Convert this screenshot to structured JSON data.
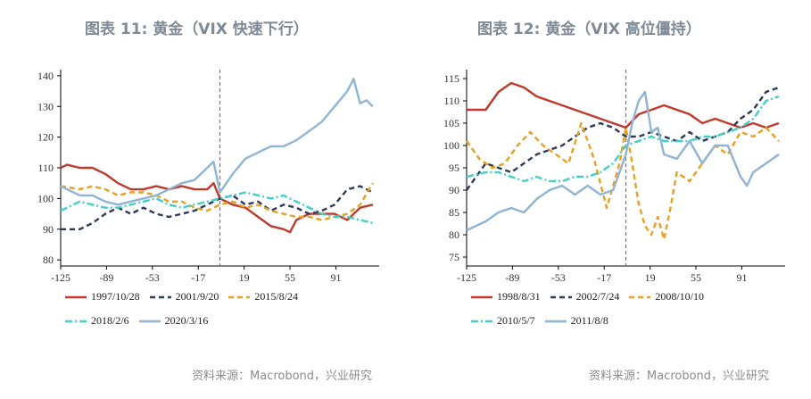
{
  "chart_data": [
    {
      "type": "line",
      "title": "图表 11: 黄金（VIX 快速下行）",
      "xlabel": "",
      "ylabel": "",
      "x_ticks": [
        -125,
        -89,
        -53,
        -17,
        19,
        55,
        91
      ],
      "y_ticks": [
        80,
        90,
        100,
        110,
        120,
        130,
        140
      ],
      "xlim": [
        -125,
        125
      ],
      "ylim": [
        78,
        142
      ],
      "event_line_x": 0,
      "legend_rows": [
        [
          0,
          1,
          2
        ],
        [
          3,
          4
        ]
      ],
      "series": [
        {
          "name": "1997/10/28",
          "color": "#c0392b",
          "dash": "solid",
          "x": [
            -125,
            -120,
            -110,
            -100,
            -90,
            -80,
            -70,
            -60,
            -50,
            -40,
            -30,
            -20,
            -10,
            -5,
            0,
            10,
            20,
            30,
            40,
            50,
            55,
            60,
            70,
            80,
            90,
            100,
            110,
            120
          ],
          "y": [
            110,
            111,
            110,
            110,
            108,
            105,
            103,
            103,
            104,
            103,
            104,
            103,
            103,
            105,
            100,
            98,
            97,
            94,
            91,
            90,
            89,
            93,
            95,
            95,
            95,
            93,
            97,
            98
          ]
        },
        {
          "name": "2001/9/20",
          "color": "#2e3a59",
          "dash": "6,4",
          "x": [
            -125,
            -110,
            -100,
            -90,
            -80,
            -70,
            -60,
            -50,
            -40,
            -30,
            -20,
            -10,
            0,
            10,
            20,
            30,
            40,
            50,
            60,
            70,
            80,
            90,
            100,
            110,
            120
          ],
          "y": [
            90,
            90,
            92,
            95,
            97,
            95,
            97,
            95,
            94,
            95,
            96,
            98,
            100,
            101,
            98,
            99,
            96,
            98,
            97,
            95,
            96,
            98,
            103,
            104,
            102
          ]
        },
        {
          "name": "2015/8/24",
          "color": "#e8a020",
          "dash": "6,4",
          "x": [
            -125,
            -110,
            -100,
            -90,
            -80,
            -70,
            -60,
            -50,
            -40,
            -30,
            -20,
            -10,
            0,
            10,
            20,
            30,
            40,
            50,
            60,
            70,
            80,
            90,
            100,
            110,
            120
          ],
          "y": [
            104,
            103,
            104,
            103,
            101,
            102,
            102,
            101,
            99,
            99,
            97,
            96,
            98,
            99,
            97,
            98,
            96,
            95,
            94,
            94,
            93,
            94,
            95,
            98,
            105
          ]
        },
        {
          "name": "2018/2/6",
          "color": "#40d0c8",
          "dash": "8,3,2,3",
          "x": [
            -125,
            -110,
            -100,
            -90,
            -80,
            -70,
            -60,
            -50,
            -40,
            -30,
            -20,
            -10,
            0,
            10,
            20,
            30,
            40,
            50,
            60,
            70,
            80,
            90,
            100,
            110,
            120
          ],
          "y": [
            96,
            99,
            98,
            97,
            97,
            98,
            99,
            100,
            98,
            97,
            98,
            99,
            100,
            101,
            102,
            101,
            100,
            101,
            99,
            97,
            95,
            94,
            94,
            93,
            92
          ]
        },
        {
          "name": "2020/3/16",
          "color": "#8fb4d4",
          "dash": "solid",
          "x": [
            -125,
            -110,
            -100,
            -90,
            -80,
            -70,
            -60,
            -50,
            -40,
            -30,
            -20,
            -10,
            -5,
            0,
            10,
            20,
            30,
            40,
            50,
            60,
            70,
            80,
            90,
            100,
            105,
            110,
            115,
            120
          ],
          "y": [
            104,
            101,
            101,
            99,
            98,
            99,
            100,
            101,
            103,
            105,
            106,
            110,
            112,
            102,
            108,
            113,
            115,
            117,
            117,
            119,
            122,
            125,
            130,
            135,
            139,
            131,
            132,
            130
          ]
        }
      ]
    },
    {
      "type": "line",
      "title": "图表 12: 黄金（VIX 高位僵持）",
      "xlabel": "",
      "ylabel": "",
      "x_ticks": [
        -125,
        -89,
        -53,
        -17,
        19,
        55,
        91
      ],
      "y_ticks": [
        75,
        80,
        85,
        90,
        95,
        100,
        105,
        110,
        115
      ],
      "xlim": [
        -125,
        125
      ],
      "ylim": [
        73,
        117
      ],
      "event_line_x": 0,
      "legend_rows": [
        [
          0,
          1,
          2
        ],
        [
          3,
          4
        ]
      ],
      "series": [
        {
          "name": "1998/8/31",
          "color": "#c0392b",
          "dash": "solid",
          "x": [
            -125,
            -110,
            -100,
            -90,
            -80,
            -70,
            -60,
            -50,
            -40,
            -30,
            -20,
            -10,
            0,
            10,
            20,
            30,
            40,
            50,
            60,
            70,
            80,
            90,
            100,
            110,
            120
          ],
          "y": [
            108,
            108,
            112,
            114,
            113,
            111,
            110,
            109,
            108,
            107,
            106,
            105,
            104,
            107,
            108,
            109,
            108,
            107,
            105,
            106,
            105,
            104,
            105,
            104,
            105
          ]
        },
        {
          "name": "2002/7/24",
          "color": "#2e3a59",
          "dash": "6,4",
          "x": [
            -125,
            -110,
            -100,
            -90,
            -80,
            -70,
            -60,
            -50,
            -40,
            -30,
            -20,
            -10,
            0,
            10,
            20,
            30,
            40,
            50,
            60,
            70,
            80,
            90,
            100,
            110,
            120
          ],
          "y": [
            90,
            96,
            95,
            94,
            96,
            98,
            99,
            100,
            102,
            104,
            105,
            104,
            102,
            102,
            103,
            102,
            101,
            103,
            101,
            102,
            103,
            106,
            108,
            112,
            113
          ]
        },
        {
          "name": "2008/10/10",
          "color": "#e8a020",
          "dash": "6,4",
          "x": [
            -125,
            -115,
            -105,
            -95,
            -85,
            -75,
            -65,
            -55,
            -45,
            -35,
            -25,
            -15,
            -5,
            0,
            5,
            10,
            15,
            20,
            25,
            30,
            35,
            40,
            50,
            60,
            70,
            80,
            90,
            100,
            110,
            120
          ],
          "y": [
            101,
            97,
            95,
            96,
            100,
            103,
            100,
            98,
            96,
            105,
            97,
            86,
            96,
            104,
            96,
            87,
            82,
            80,
            84,
            79,
            86,
            94,
            92,
            96,
            100,
            98,
            103,
            102,
            104,
            101
          ]
        },
        {
          "name": "2010/5/7",
          "color": "#40d0c8",
          "dash": "8,3,2,3",
          "x": [
            -125,
            -110,
            -100,
            -90,
            -80,
            -70,
            -60,
            -50,
            -40,
            -30,
            -20,
            -10,
            0,
            10,
            20,
            30,
            40,
            50,
            60,
            70,
            80,
            90,
            100,
            110,
            120
          ],
          "y": [
            93,
            94,
            94,
            93,
            92,
            93,
            92,
            92,
            93,
            93,
            94,
            96,
            100,
            101,
            102,
            101,
            101,
            101,
            102,
            102,
            103,
            104,
            106,
            110,
            111
          ]
        },
        {
          "name": "2011/8/8",
          "color": "#8fb4d4",
          "dash": "solid",
          "x": [
            -125,
            -110,
            -100,
            -90,
            -80,
            -70,
            -60,
            -50,
            -40,
            -30,
            -20,
            -10,
            0,
            5,
            10,
            15,
            20,
            25,
            30,
            40,
            50,
            60,
            70,
            80,
            90,
            95,
            100,
            110,
            120
          ],
          "y": [
            81,
            83,
            85,
            86,
            85,
            88,
            90,
            91,
            89,
            91,
            89,
            90,
            98,
            105,
            110,
            112,
            103,
            104,
            98,
            97,
            101,
            96,
            100,
            100,
            93,
            91,
            94,
            96,
            98
          ]
        }
      ]
    }
  ],
  "source_left": "资料来源：Macrobond，兴业研究",
  "source_right": "资料来源：Macrobond，兴业研究"
}
